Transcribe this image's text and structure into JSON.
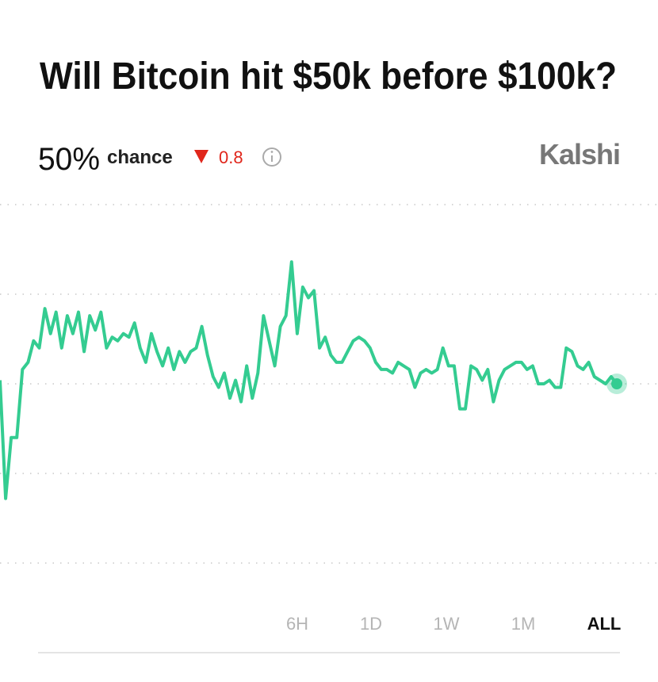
{
  "chart_data": {
    "type": "line",
    "title": "Will Bitcoin hit $50k before $100k?",
    "current": "50%",
    "current_suffix": "chance",
    "change": "0.8",
    "change_direction": "down",
    "brand": "Kalshi",
    "ranges": [
      "6H",
      "1D",
      "1W",
      "1M",
      "ALL"
    ],
    "active_range": 4,
    "color": "#34cc91",
    "ylim": [
      0,
      100
    ],
    "yticks": [
      0,
      25,
      50,
      75,
      100
    ],
    "grid": true,
    "values": [
      51,
      18,
      35,
      35,
      54,
      56,
      62,
      60,
      71,
      64,
      70,
      60,
      69,
      64,
      70,
      59,
      69,
      65,
      70,
      60,
      63,
      62,
      64,
      63,
      67,
      60,
      56,
      64,
      59,
      55,
      60,
      54,
      59,
      56,
      59,
      60,
      66,
      58,
      52,
      49,
      53,
      46,
      51,
      45,
      55,
      46,
      53,
      69,
      62,
      55,
      66,
      69,
      84,
      64,
      77,
      74,
      76,
      60,
      63,
      58,
      56,
      56,
      59,
      62,
      63,
      62,
      60,
      56,
      54,
      54,
      53,
      56,
      55,
      54,
      49,
      53,
      54,
      53,
      54,
      60,
      55,
      55,
      43,
      43,
      55,
      54,
      51,
      54,
      45,
      51,
      54,
      55,
      56,
      56,
      54,
      55,
      50,
      50,
      51,
      49,
      49,
      60,
      59,
      55,
      54,
      56,
      52,
      51,
      50,
      52,
      50
    ]
  }
}
